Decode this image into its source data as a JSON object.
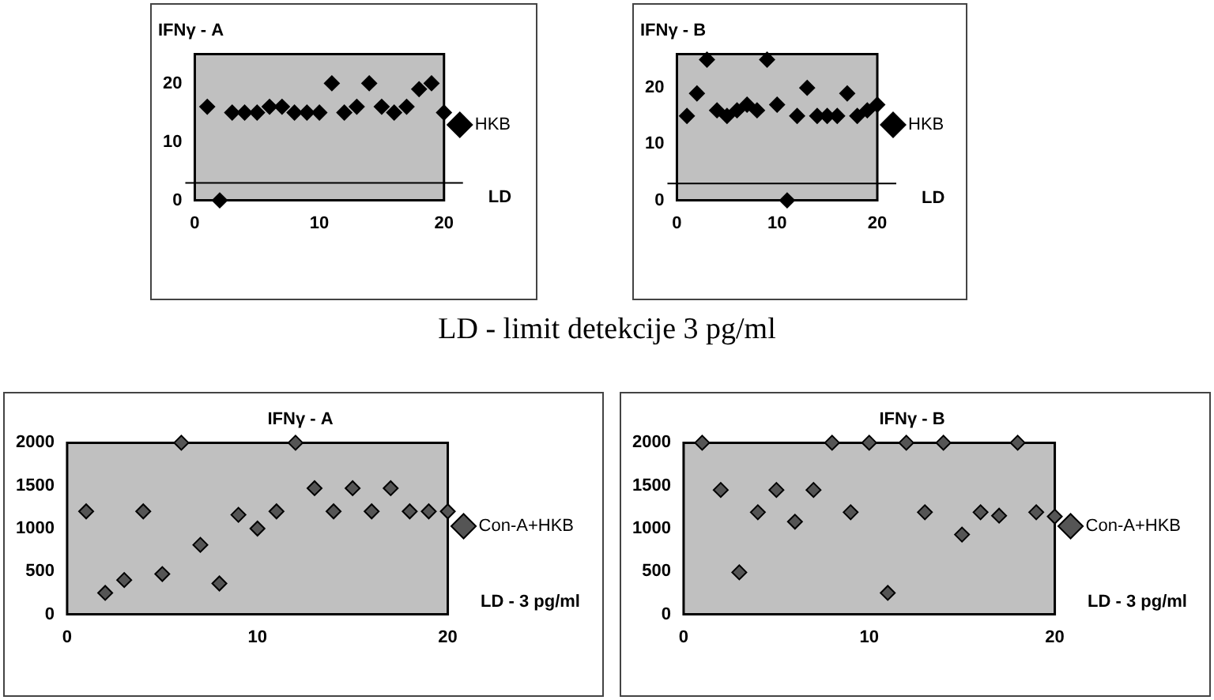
{
  "chart_data": [
    {
      "type": "scatter",
      "title": "IFNγ - A",
      "x": [
        1,
        2,
        3,
        4,
        5,
        6,
        7,
        8,
        9,
        10,
        11,
        12,
        13,
        14,
        15,
        16,
        17,
        18,
        19,
        20
      ],
      "series": [
        {
          "name": "HKB",
          "color": "#000000",
          "values": [
            16,
            0,
            15,
            15,
            15,
            16,
            16,
            15,
            15,
            15,
            20,
            15,
            16,
            20,
            16,
            15,
            16,
            19,
            20,
            15
          ]
        }
      ],
      "xlim": [
        0,
        20
      ],
      "xticks": [
        0,
        10,
        20
      ],
      "ylim": [
        0,
        25
      ],
      "yticks": [
        0,
        10,
        20
      ],
      "marker": "diamond",
      "grid": false,
      "legend": "right",
      "ref_lines": [
        {
          "axis": "y",
          "value": 3,
          "label": "LD",
          "color": "#000000"
        }
      ],
      "annotations": [
        "LD - limit detekcije 3 pg/ml"
      ]
    },
    {
      "type": "scatter",
      "title": "IFNγ - B",
      "x": [
        1,
        2,
        3,
        4,
        5,
        6,
        7,
        8,
        9,
        10,
        11,
        12,
        13,
        14,
        15,
        16,
        17,
        18,
        19,
        20
      ],
      "series": [
        {
          "name": "HKB",
          "color": "#000000",
          "values": [
            15,
            19,
            25,
            16,
            15,
            16,
            17,
            16,
            25,
            17,
            0,
            15,
            20,
            15,
            15,
            15,
            19,
            15,
            16,
            17
          ]
        }
      ],
      "xlim": [
        0,
        20
      ],
      "xticks": [
        0,
        10,
        20
      ],
      "ylim": [
        0,
        26
      ],
      "yticks": [
        0,
        10,
        20
      ],
      "marker": "diamond",
      "grid": false,
      "legend": "right",
      "ref_lines": [
        {
          "axis": "y",
          "value": 3,
          "label": "LD",
          "color": "#000000"
        }
      ]
    },
    {
      "type": "scatter",
      "title": "IFNγ - A",
      "x": [
        1,
        2,
        3,
        4,
        5,
        6,
        7,
        8,
        9,
        10,
        11,
        12,
        13,
        14,
        15,
        16,
        17,
        18,
        19,
        20
      ],
      "series": [
        {
          "name": "Con-A+HKB",
          "color": "#555555",
          "values": [
            1200,
            250,
            400,
            1200,
            470,
            2000,
            810,
            360,
            1160,
            1000,
            1200,
            2000,
            1470,
            1200,
            1470,
            1200,
            1470,
            1200,
            1200,
            1200
          ]
        }
      ],
      "xlim": [
        0,
        20
      ],
      "xticks": [
        0,
        10,
        20
      ],
      "ylim": [
        0,
        2000
      ],
      "yticks": [
        0,
        500,
        1000,
        1500,
        2000
      ],
      "marker": "diamond",
      "grid": false,
      "legend": "right",
      "annotations": [
        "LD - 3 pg/ml"
      ]
    },
    {
      "type": "scatter",
      "title": "IFNγ - B",
      "x": [
        1,
        2,
        3,
        4,
        5,
        6,
        7,
        8,
        9,
        10,
        11,
        12,
        13,
        14,
        15,
        16,
        17,
        18,
        19,
        20
      ],
      "series": [
        {
          "name": "Con-A+HKB",
          "color": "#555555",
          "values": [
            2000,
            1450,
            490,
            1190,
            1450,
            1080,
            1450,
            2000,
            1190,
            2000,
            250,
            2000,
            1190,
            2000,
            930,
            1190,
            1150,
            2000,
            1190,
            1140
          ]
        }
      ],
      "xlim": [
        0,
        20
      ],
      "xticks": [
        0,
        10,
        20
      ],
      "ylim": [
        0,
        2000
      ],
      "yticks": [
        0,
        500,
        1000,
        1500,
        2000
      ],
      "marker": "diamond",
      "grid": false,
      "legend": "right",
      "annotations": [
        "LD - 3 pg/ml"
      ]
    }
  ]
}
